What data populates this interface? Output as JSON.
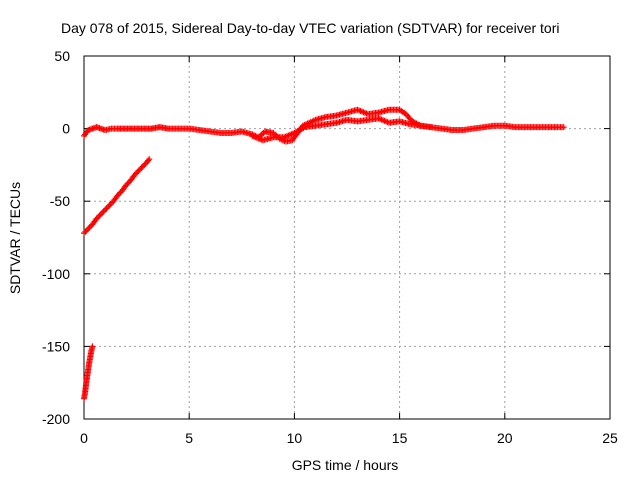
{
  "chart_data": {
    "type": "scatter",
    "title": "Day 078 of 2015, Sidereal Day-to-day VTEC variation (SDTVAR) for receiver tori",
    "xlabel": "GPS time / hours",
    "ylabel": "SDTVAR / TECUs",
    "xlim": [
      0,
      25
    ],
    "ylim": [
      -200,
      50
    ],
    "xticks": [
      0,
      5,
      10,
      15,
      20,
      25
    ],
    "yticks": [
      -200,
      -150,
      -100,
      -50,
      0,
      50
    ],
    "grid": true,
    "marker": "plus",
    "series": [
      {
        "name": "SDTVAR main band",
        "color": "#ff0000",
        "points": [
          [
            0.0,
            -5
          ],
          [
            0.1,
            -3
          ],
          [
            0.2,
            -1
          ],
          [
            0.4,
            0
          ],
          [
            0.6,
            1
          ],
          [
            0.8,
            0
          ],
          [
            1.0,
            -1
          ],
          [
            1.3,
            0
          ],
          [
            1.6,
            0
          ],
          [
            2.0,
            0
          ],
          [
            2.4,
            0
          ],
          [
            2.8,
            0
          ],
          [
            3.2,
            0
          ],
          [
            3.6,
            1
          ],
          [
            4.0,
            0
          ],
          [
            4.5,
            0
          ],
          [
            5.0,
            0
          ],
          [
            5.5,
            -1
          ],
          [
            6.0,
            -2
          ],
          [
            6.5,
            -3
          ],
          [
            7.0,
            -3
          ],
          [
            7.5,
            -2
          ],
          [
            8.0,
            -4
          ],
          [
            8.3,
            -6
          ],
          [
            8.6,
            -2
          ],
          [
            9.0,
            -3
          ],
          [
            9.3,
            -7
          ],
          [
            9.6,
            -9
          ],
          [
            9.9,
            -8
          ],
          [
            10.1,
            -4
          ],
          [
            10.4,
            2
          ],
          [
            10.7,
            4
          ],
          [
            11.0,
            6
          ],
          [
            11.5,
            8
          ],
          [
            12.0,
            9
          ],
          [
            12.5,
            11
          ],
          [
            13.0,
            13
          ],
          [
            13.5,
            10
          ],
          [
            14.0,
            11
          ],
          [
            14.5,
            13
          ],
          [
            15.0,
            13
          ],
          [
            15.3,
            10
          ],
          [
            15.6,
            5
          ],
          [
            16.0,
            2
          ],
          [
            16.5,
            1
          ],
          [
            17.0,
            0
          ],
          [
            17.5,
            -1
          ],
          [
            18.0,
            -1
          ],
          [
            18.5,
            0
          ],
          [
            19.0,
            1
          ],
          [
            19.5,
            2
          ],
          [
            20.0,
            2
          ],
          [
            20.5,
            1
          ],
          [
            21.0,
            1
          ],
          [
            21.5,
            1
          ],
          [
            22.0,
            1
          ],
          [
            22.5,
            1
          ],
          [
            22.8,
            1
          ]
        ]
      },
      {
        "name": "SDTVAR secondary band",
        "color": "#ff0000",
        "points": [
          [
            8.0,
            -5
          ],
          [
            8.5,
            -8
          ],
          [
            9.0,
            -6
          ],
          [
            9.5,
            -6
          ],
          [
            10.0,
            -3
          ],
          [
            10.5,
            1
          ],
          [
            11.0,
            2
          ],
          [
            11.5,
            3
          ],
          [
            12.0,
            4
          ],
          [
            12.5,
            6
          ],
          [
            13.0,
            5
          ],
          [
            13.5,
            6
          ],
          [
            14.0,
            7
          ],
          [
            14.5,
            4
          ],
          [
            15.0,
            5
          ],
          [
            15.5,
            3
          ],
          [
            16.0,
            2
          ],
          [
            16.5,
            1
          ]
        ]
      },
      {
        "name": "SDTVAR ramp",
        "color": "#ff0000",
        "points": [
          [
            0.0,
            -72
          ],
          [
            0.2,
            -69
          ],
          [
            0.4,
            -66
          ],
          [
            0.6,
            -62
          ],
          [
            0.8,
            -59
          ],
          [
            1.0,
            -56
          ],
          [
            1.2,
            -53
          ],
          [
            1.4,
            -50
          ],
          [
            1.6,
            -46
          ],
          [
            1.8,
            -43
          ],
          [
            2.0,
            -39
          ],
          [
            2.2,
            -36
          ],
          [
            2.4,
            -32
          ],
          [
            2.6,
            -29
          ],
          [
            2.8,
            -26
          ],
          [
            3.0,
            -23
          ],
          [
            3.1,
            -21
          ]
        ]
      },
      {
        "name": "SDTVAR low segment",
        "color": "#ff0000",
        "points": [
          [
            0.0,
            -186
          ],
          [
            0.05,
            -182
          ],
          [
            0.1,
            -176
          ],
          [
            0.15,
            -171
          ],
          [
            0.2,
            -166
          ],
          [
            0.25,
            -161
          ],
          [
            0.3,
            -157
          ],
          [
            0.35,
            -153
          ],
          [
            0.4,
            -150
          ]
        ]
      }
    ]
  }
}
